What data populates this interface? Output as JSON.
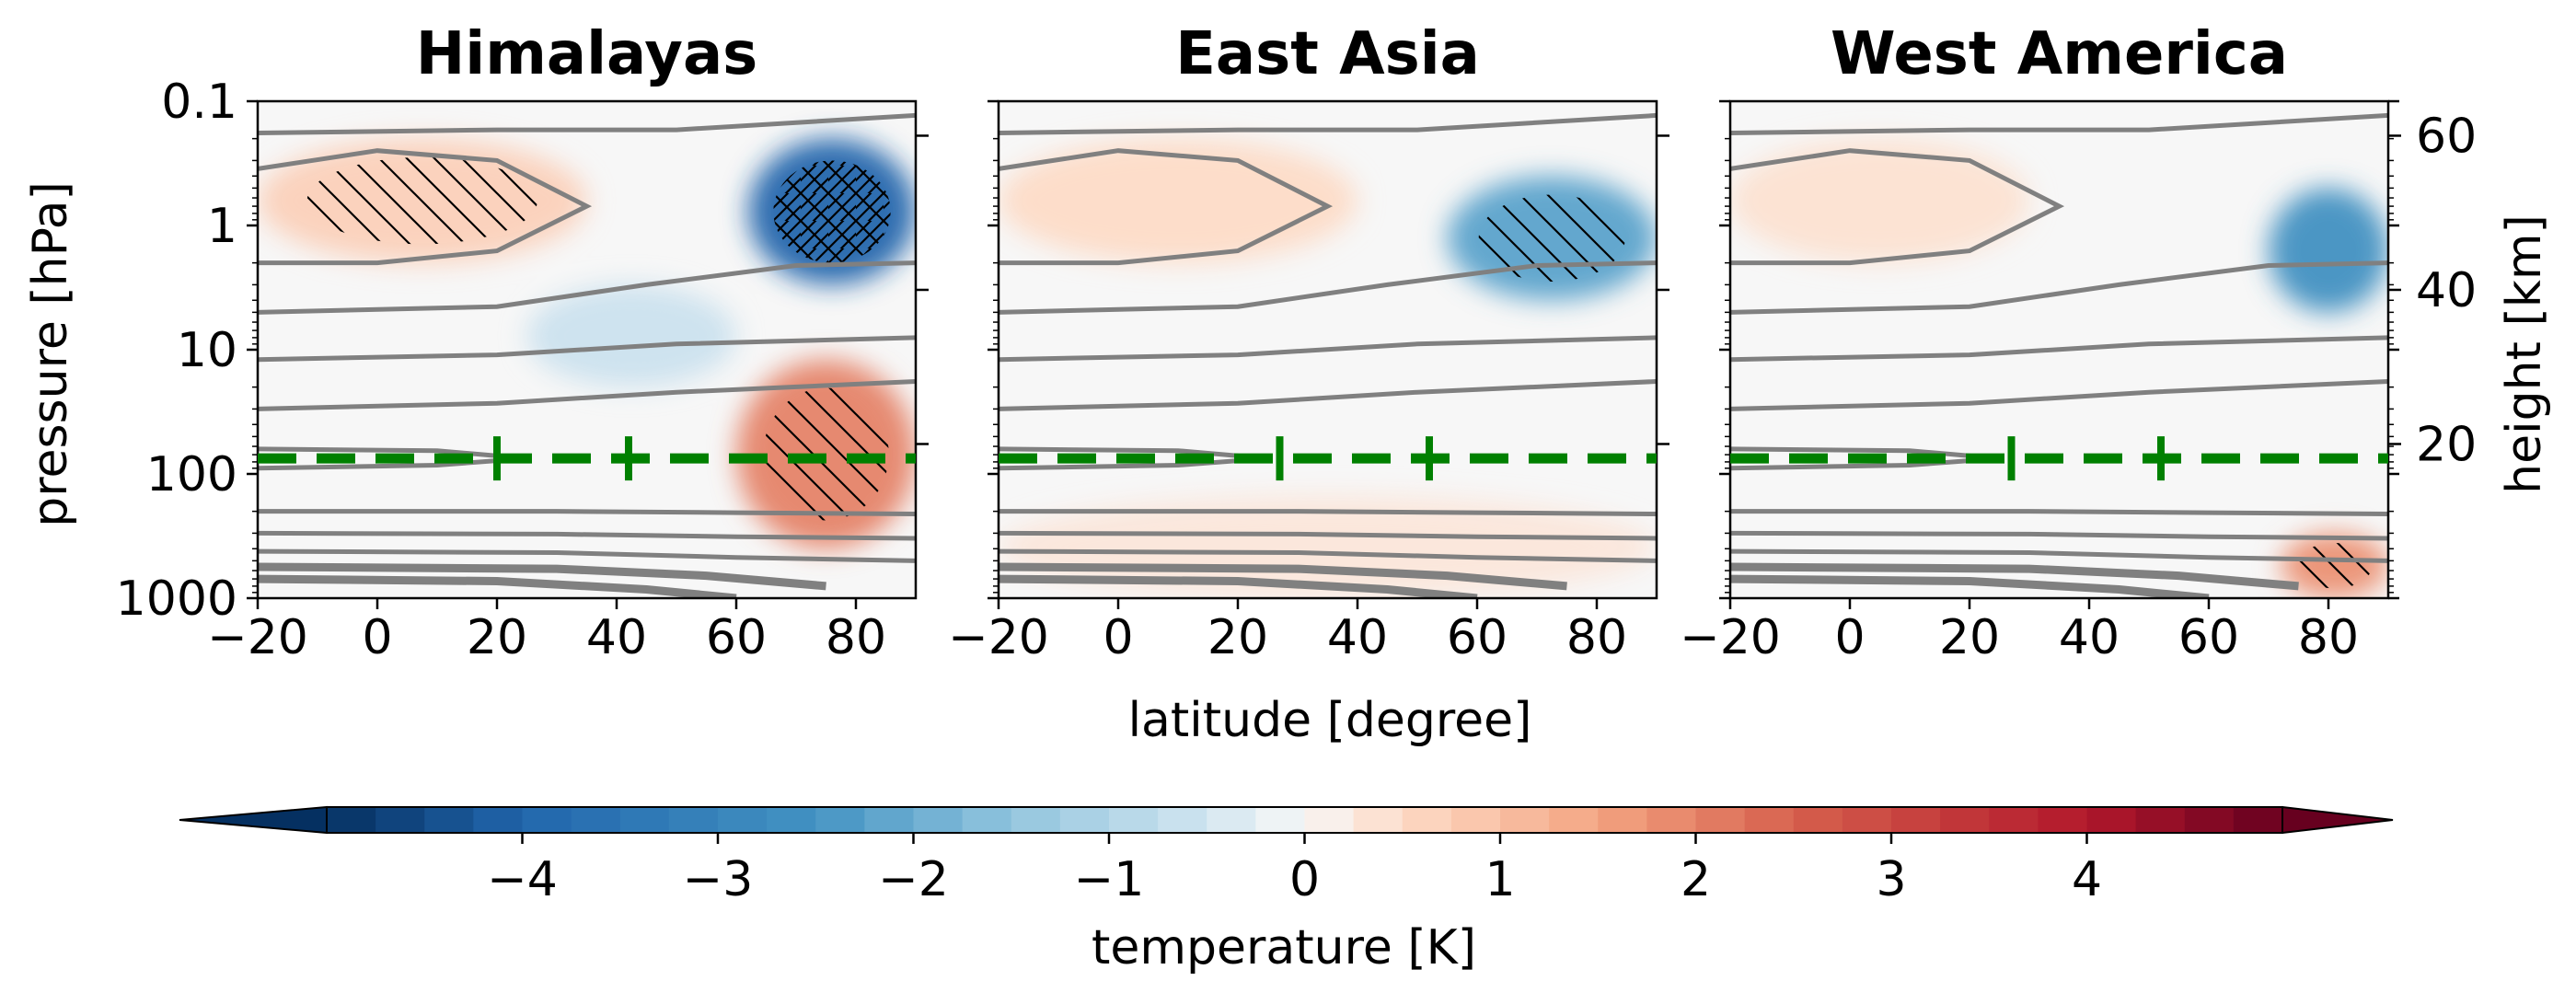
{
  "chart_data": {
    "type": "heatmap",
    "subtype": "filled contour (latitude–pressure cross sections) with grey line contours and hatching",
    "colormap": "RdBu_r",
    "panels": [
      {
        "title": "Himalayas",
        "x_range": [
          -20,
          90
        ],
        "y_range_hPa": [
          1000,
          0.1
        ],
        "dashed_line_pressure_hPa": 75,
        "dashed_line_markers_lat": [
          20,
          42
        ],
        "anomaly_features": [
          {
            "desc": "strong cooling",
            "lat": [
              62,
              90
            ],
            "pressure_hPa": [
              0.2,
              3
            ],
            "value_K": -4.0,
            "hatched": true
          },
          {
            "desc": "warming",
            "lat": [
              -20,
              35
            ],
            "pressure_hPa": [
              0.2,
              2
            ],
            "value_K": 0.7,
            "hatched": true
          },
          {
            "desc": "warming",
            "lat": [
              60,
              90
            ],
            "pressure_hPa": [
              12,
              400
            ],
            "value_K": 2.0,
            "hatched": true
          },
          {
            "desc": "weak cooling",
            "lat": [
              25,
              60
            ],
            "pressure_hPa": [
              3,
              20
            ],
            "value_K": -0.6,
            "hatched": false
          }
        ]
      },
      {
        "title": "East Asia",
        "x_range": [
          -20,
          90
        ],
        "y_range_hPa": [
          1000,
          0.1
        ],
        "dashed_line_pressure_hPa": 75,
        "dashed_line_markers_lat": [
          27,
          52
        ],
        "anomaly_features": [
          {
            "desc": "cooling",
            "lat": [
              55,
              90
            ],
            "pressure_hPa": [
              0.4,
              4
            ],
            "value_K": -2.2,
            "hatched": true
          },
          {
            "desc": "weak warming",
            "lat": [
              -20,
              40
            ],
            "pressure_hPa": [
              0.2,
              2
            ],
            "value_K": 0.5,
            "hatched": false
          },
          {
            "desc": "weak warming",
            "lat": [
              -20,
              90
            ],
            "pressure_hPa": [
              150,
              1000
            ],
            "value_K": 0.3,
            "hatched": false
          }
        ]
      },
      {
        "title": "West America",
        "x_range": [
          -20,
          90
        ],
        "y_range_hPa": [
          1000,
          0.1
        ],
        "dashed_line_pressure_hPa": 75,
        "dashed_line_markers_lat": [
          27,
          52
        ],
        "anomaly_features": [
          {
            "desc": "cooling",
            "lat": [
              70,
              90
            ],
            "pressure_hPa": [
              0.5,
              5
            ],
            "value_K": -2.6,
            "hatched": false
          },
          {
            "desc": "warming",
            "lat": [
              72,
              90
            ],
            "pressure_hPa": [
              300,
              1000
            ],
            "value_K": 1.8,
            "hatched": true
          },
          {
            "desc": "weak warming",
            "lat": [
              -20,
              30
            ],
            "pressure_hPa": [
              0.2,
              2
            ],
            "value_K": 0.4,
            "hatched": false
          }
        ]
      }
    ],
    "xlabel": "latitude [degree]",
    "ylabel": "pressure [hPa]",
    "ylabel_right": "height [km]",
    "x_ticks": [
      "−20",
      "0",
      "20",
      "40",
      "60",
      "80"
    ],
    "x_tick_values": [
      -20,
      0,
      20,
      40,
      60,
      80
    ],
    "y_ticks": [
      "0.1",
      "1",
      "10",
      "100",
      "1000"
    ],
    "y_tick_values": [
      0.1,
      1,
      10,
      100,
      1000
    ],
    "y_right_ticks": [
      "60",
      "40",
      "20"
    ],
    "y_right_tick_values": [
      60,
      40,
      20
    ],
    "colorbar": {
      "label": "temperature [K]",
      "range": [
        -5,
        5
      ],
      "step": 0.25,
      "ticks": [
        "−4",
        "−3",
        "−2",
        "−1",
        "0",
        "1",
        "2",
        "3",
        "4"
      ],
      "tick_values": [
        -4,
        -3,
        -2,
        -1,
        0,
        1,
        2,
        3,
        4
      ],
      "extend": "both"
    },
    "colors": {
      "dashed_line": "#008000",
      "contour_lines": "#808080",
      "hatch": "#000000"
    }
  }
}
